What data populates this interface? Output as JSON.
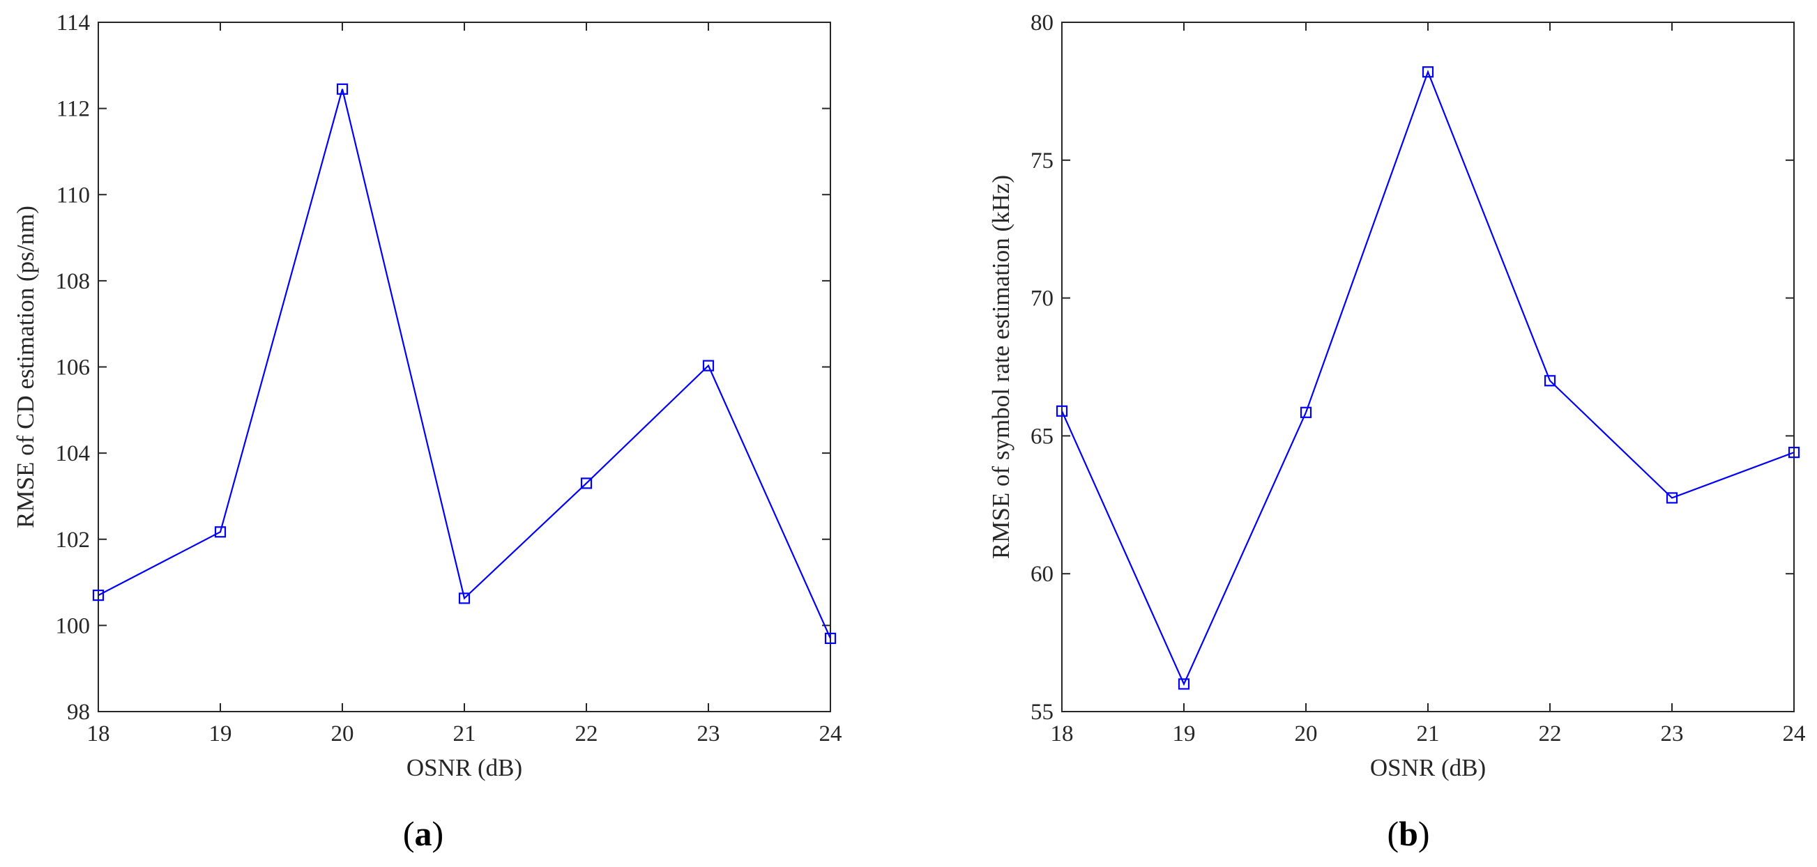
{
  "series_color": "#0000ff",
  "chart_data": [
    {
      "type": "line",
      "panel_label": "a",
      "title": "",
      "xlabel": "OSNR (dB)",
      "ylabel": "RMSE of CD estimation (ps/nm)",
      "x": [
        18,
        19,
        20,
        21,
        22,
        23,
        24
      ],
      "xlim": [
        18,
        24
      ],
      "xticks": [
        18,
        19,
        20,
        21,
        22,
        23,
        24
      ],
      "ylim": [
        98,
        114
      ],
      "yticks": [
        98,
        100,
        102,
        104,
        106,
        108,
        110,
        112,
        114
      ],
      "grid": false,
      "marker": "square",
      "series": [
        {
          "values": [
            100.7,
            102.17,
            112.45,
            100.63,
            103.3,
            106.03,
            99.7
          ]
        }
      ]
    },
    {
      "type": "line",
      "panel_label": "b",
      "title": "",
      "xlabel": "OSNR (dB)",
      "ylabel": "RMSE of symbol rate estimation (kHz)",
      "x": [
        18,
        19,
        20,
        21,
        22,
        23,
        24
      ],
      "xlim": [
        18,
        24
      ],
      "xticks": [
        18,
        19,
        20,
        21,
        22,
        23,
        24
      ],
      "ylim": [
        55,
        80
      ],
      "yticks": [
        55,
        60,
        65,
        70,
        75,
        80
      ],
      "grid": false,
      "marker": "square",
      "series": [
        {
          "values": [
            65.9,
            56.0,
            65.85,
            78.2,
            67.0,
            62.75,
            64.4
          ]
        }
      ]
    }
  ]
}
